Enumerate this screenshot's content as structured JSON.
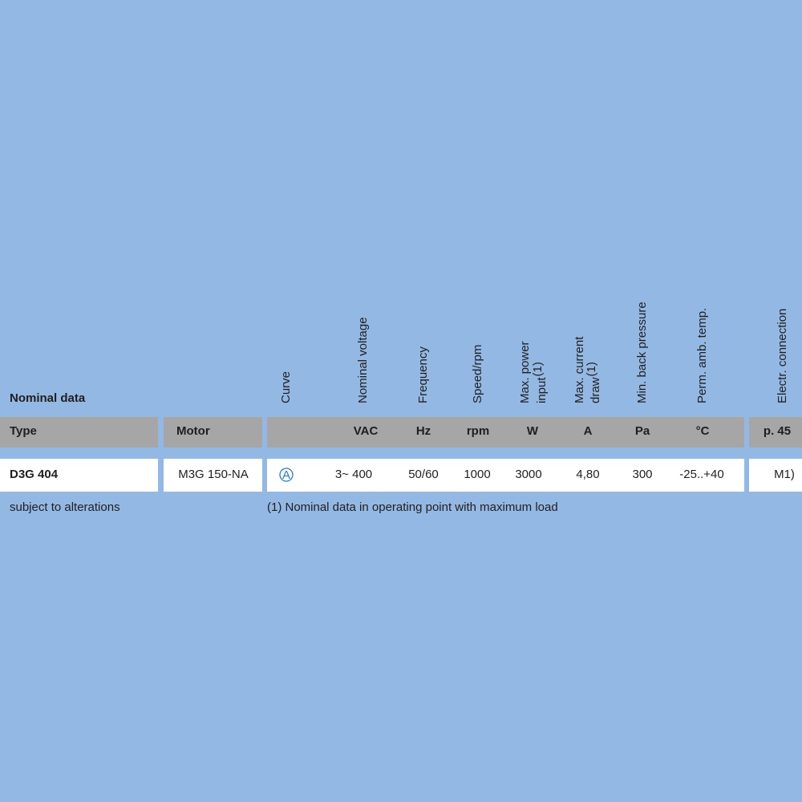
{
  "table": {
    "title": "Nominal data",
    "fixed_headers": [
      "Type",
      "Motor"
    ],
    "rotated_headers": [
      {
        "lines": [
          "Curve"
        ]
      },
      {
        "lines": [
          "Nominal voltage"
        ]
      },
      {
        "lines": [
          "Frequency"
        ]
      },
      {
        "lines": [
          "Speed/rpm"
        ]
      },
      {
        "lines": [
          "Max. power",
          "input"
        ],
        "note": "(1)"
      },
      {
        "lines": [
          "Max. current",
          "draw"
        ],
        "note": "(1)"
      },
      {
        "lines": [
          "Min. back pressure"
        ]
      },
      {
        "lines": [
          "Perm. amb. temp."
        ]
      },
      {
        "lines": [
          "Electr. connection"
        ]
      }
    ],
    "units": [
      "VAC",
      "Hz",
      "rpm",
      "W",
      "A",
      "Pa",
      "°C",
      "p. 45"
    ],
    "row": [
      "D3G 404",
      "M3G 150-NA",
      "A",
      "3~ 400",
      "50/60",
      "1000",
      "3000",
      "4,80",
      "300",
      "-25..+40",
      "M1)"
    ]
  },
  "footnotes": [
    "subject to alterations",
    "(1) Nominal data in operating point with maximum load"
  ]
}
